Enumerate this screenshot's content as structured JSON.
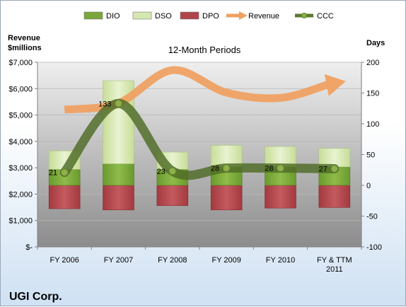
{
  "chart_data": {
    "type": "bar",
    "title": "12-Month Periods",
    "left_axis_label": [
      "Revenue",
      "$millions"
    ],
    "right_axis_label": "Days",
    "footer_title": "UGI Corp.",
    "categories": [
      [
        "FY 2006"
      ],
      [
        "FY 2007"
      ],
      [
        "FY 2008"
      ],
      [
        "FY 2009"
      ],
      [
        "FY 2010"
      ],
      [
        "FY & TTM",
        "2011"
      ]
    ],
    "left_axis": {
      "min": 0,
      "max": 7000,
      "step": 1000,
      "tick_labels": [
        "$-",
        "$1,000",
        "$2,000",
        "$3,000",
        "$4,000",
        "$5,000",
        "$6,000",
        "$7,000"
      ]
    },
    "right_axis": {
      "min": -100,
      "max": 200,
      "step": 50,
      "tick_labels": [
        "-100",
        "-50",
        "0",
        "50",
        "100",
        "150",
        "200"
      ]
    },
    "legend": [
      {
        "name": "DIO",
        "color": "#7aa63a",
        "kind": "box"
      },
      {
        "name": "DSO",
        "color": "#d6e8b0",
        "kind": "box"
      },
      {
        "name": "DPO",
        "color": "#b0444a",
        "kind": "box"
      },
      {
        "name": "Revenue",
        "color": "#f0a060",
        "kind": "arrow"
      },
      {
        "name": "CCC",
        "color": "#5a7a2e",
        "kind": "line"
      }
    ],
    "series": [
      {
        "name": "DPO",
        "axis": "right",
        "values": [
          -38,
          -40,
          -33,
          -40,
          -37,
          -36
        ]
      },
      {
        "name": "DIO",
        "axis": "right",
        "values": [
          0,
          0,
          0,
          0,
          0,
          0
        ]
      },
      {
        "name": "DSO",
        "axis": "right",
        "values": [
          56,
          170,
          54,
          65,
          63,
          60
        ]
      },
      {
        "name": "Revenue",
        "axis": "left",
        "values": [
          5200,
          5450,
          6700,
          5850,
          5650,
          6200
        ]
      },
      {
        "name": "CCC",
        "axis": "right",
        "values": [
          21,
          133,
          23,
          28,
          28,
          27
        ],
        "data_labels": [
          "21",
          "133",
          "23",
          "28",
          "28",
          "27"
        ]
      }
    ],
    "dio_top": [
      26,
      35,
      26,
      30,
      30,
      30
    ],
    "grid": true
  }
}
